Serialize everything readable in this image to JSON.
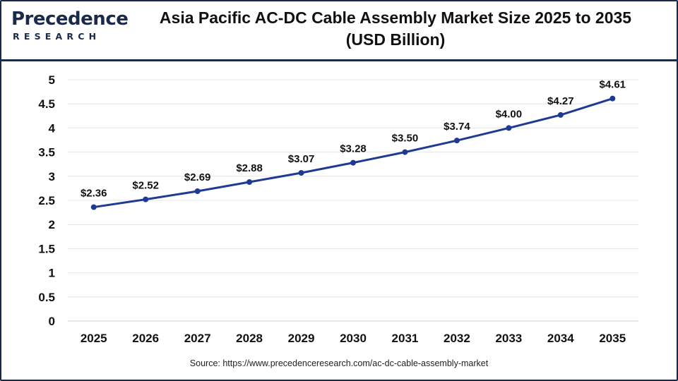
{
  "header": {
    "logo_text": "Precedence",
    "logo_sub": "RESEARCH",
    "title_line1": "Asia Pacific AC-DC Cable Assembly Market Size 2025 to 2035",
    "title_line2": "(USD Billion)"
  },
  "footer": {
    "source": "Source: https://www.precedenceresearch.com/ac-dc-cable-assembly-market"
  },
  "colors": {
    "line": "#1f3a93",
    "grid": "#e4e4e4",
    "brand": "#1b2a4a"
  },
  "chart_data": {
    "type": "line",
    "title": "Asia Pacific AC-DC Cable Assembly Market Size 2025 to 2035 (USD Billion)",
    "categories": [
      "2025",
      "2026",
      "2027",
      "2028",
      "2029",
      "2030",
      "2031",
      "2032",
      "2033",
      "2034",
      "2035"
    ],
    "series": [
      {
        "values": [
          2.36,
          2.52,
          2.69,
          2.88,
          3.07,
          3.28,
          3.5,
          3.74,
          4.0,
          4.27,
          4.61
        ],
        "labels": [
          "$2.36",
          "$2.52",
          "$2.69",
          "$2.88",
          "$3.07",
          "$3.28",
          "$3.50",
          "$3.74",
          "$4.00",
          "$4.27",
          "$4.61"
        ]
      }
    ],
    "yticks": [
      "0",
      "0.5",
      "1",
      "1.5",
      "2",
      "2.5",
      "3",
      "3.5",
      "4",
      "4.5",
      "5"
    ],
    "ylim": [
      0,
      5
    ],
    "xlabel": "",
    "ylabel": "",
    "grid": true,
    "legend": "none"
  }
}
